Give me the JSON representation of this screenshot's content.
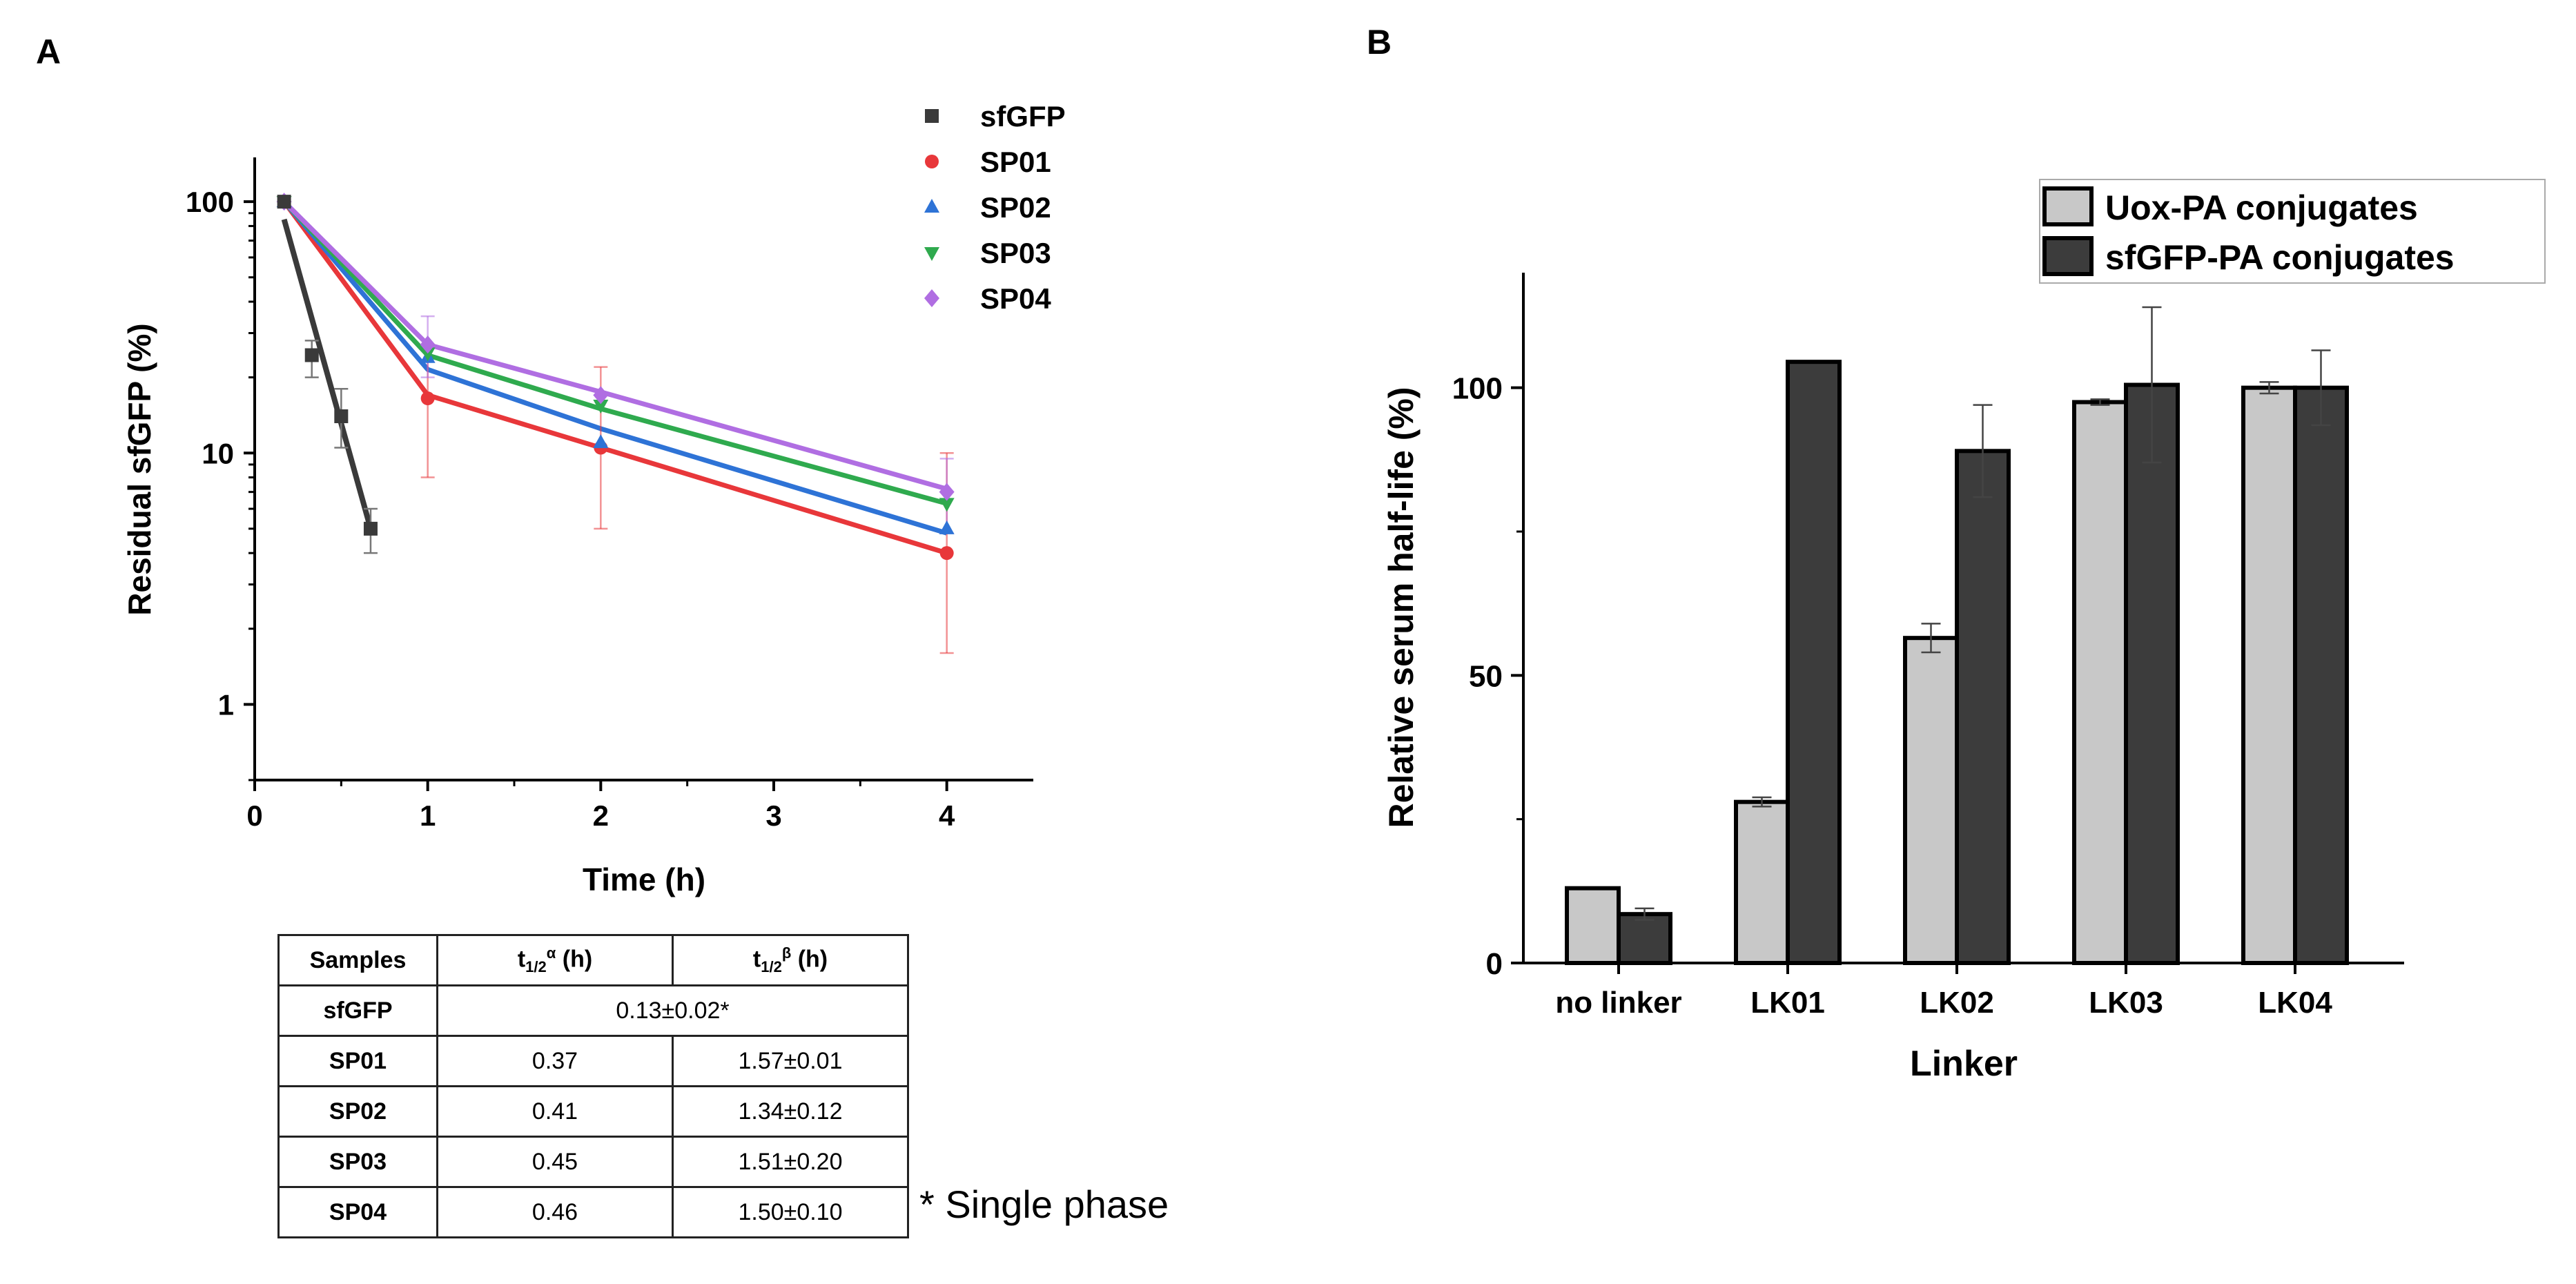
{
  "panel_labels": {
    "a": "A",
    "b": "B"
  },
  "table": {
    "headers": {
      "samples": "Samples",
      "alpha_main": "t",
      "alpha_sub": "1/2",
      "alpha_sup": "α",
      "alpha_unit": " (h)",
      "beta_main": "t",
      "beta_sub": "1/2",
      "beta_sup": "β",
      "beta_unit": " (h)"
    },
    "rows": [
      {
        "sample": "sfGFP",
        "merged": "0.13±0.02*"
      },
      {
        "sample": "SP01",
        "alpha": "0.37",
        "beta": "1.57±0.01"
      },
      {
        "sample": "SP02",
        "alpha": "0.41",
        "beta": "1.34±0.12"
      },
      {
        "sample": "SP03",
        "alpha": "0.45",
        "beta": "1.51±0.20"
      },
      {
        "sample": "SP04",
        "alpha": "0.46",
        "beta": "1.50±0.10"
      }
    ],
    "footnote": "* Single phase"
  },
  "chart_data": [
    {
      "type": "scatter",
      "panel": "A",
      "title": "",
      "xlabel": "Time (h)",
      "ylabel": "Residual sfGFP (%)",
      "xlim": [
        0,
        4.5
      ],
      "ylim": [
        0.5,
        150
      ],
      "yscale": "log",
      "xticks": [
        0,
        1,
        2,
        3,
        4
      ],
      "xtick_labels": [
        "0",
        "1",
        "2",
        "3",
        "4"
      ],
      "yticks": [
        1,
        10,
        100
      ],
      "ytick_labels": [
        "1",
        "10",
        "100"
      ],
      "legend_position": "top-right",
      "series": [
        {
          "name": "sfGFP",
          "color": "#3a3a3a",
          "marker": "square",
          "x": [
            0.17,
            0.33,
            0.5,
            0.67
          ],
          "y": [
            100,
            24.5,
            14,
            5
          ],
          "err_low": [
            0,
            20,
            10.5,
            4
          ],
          "err_high": [
            0,
            28,
            18,
            6
          ],
          "fit_x": [
            0.17,
            0.67
          ],
          "fit_y": [
            85,
            5
          ]
        },
        {
          "name": "SP01",
          "color": "#e8373a",
          "marker": "circle",
          "x": [
            0.17,
            1,
            2,
            4
          ],
          "y": [
            100,
            16.5,
            10.5,
            4
          ],
          "err_low": [
            0,
            8,
            5,
            1.6
          ],
          "err_high": [
            0,
            27,
            22,
            10
          ],
          "fit_x": [
            0.17,
            1,
            2,
            4
          ],
          "fit_y": [
            100,
            17,
            10.5,
            4
          ]
        },
        {
          "name": "SP02",
          "color": "#2e73d6",
          "marker": "triangle-up",
          "x": [
            0.17,
            1,
            2,
            4
          ],
          "y": [
            100,
            24,
            11,
            5
          ],
          "err_low": [
            0,
            0,
            0,
            0
          ],
          "err_high": [
            0,
            0,
            0,
            0
          ],
          "fit_x": [
            0.17,
            1,
            2,
            4
          ],
          "fit_y": [
            100,
            21.5,
            12.5,
            4.8
          ]
        },
        {
          "name": "SP03",
          "color": "#2faa4e",
          "marker": "triangle-down",
          "x": [
            0.17,
            1,
            2,
            4
          ],
          "y": [
            100,
            25,
            15.5,
            6.3
          ],
          "err_low": [
            0,
            0,
            0,
            0
          ],
          "err_high": [
            0,
            0,
            0,
            0
          ],
          "fit_x": [
            0.17,
            1,
            2,
            4
          ],
          "fit_y": [
            100,
            24.5,
            15,
            6.3
          ]
        },
        {
          "name": "SP04",
          "color": "#b06ee2",
          "marker": "diamond",
          "x": [
            0.17,
            1,
            2,
            4
          ],
          "y": [
            100,
            27,
            17,
            7
          ],
          "err_low": [
            0,
            20,
            0,
            4.8
          ],
          "err_high": [
            0,
            35,
            0,
            9.5
          ],
          "fit_x": [
            0.17,
            1,
            2,
            4
          ],
          "fit_y": [
            100,
            27,
            17.5,
            7.2
          ]
        }
      ]
    },
    {
      "type": "bar",
      "panel": "B",
      "title": "",
      "xlabel": "Linker",
      "ylabel": "Relative serum half-life (%)",
      "ylim": [
        0,
        120
      ],
      "yticks": [
        0,
        50,
        100
      ],
      "ytick_labels": [
        "0",
        "50",
        "100"
      ],
      "categories": [
        "no linker",
        "LK01",
        "LK02",
        "LK03",
        "LK04"
      ],
      "legend_position": "top-right",
      "series": [
        {
          "name": "Uox-PA conjugates",
          "color": "#c8c8c8",
          "values": [
            13,
            28,
            56.5,
            97.5,
            100
          ],
          "err": [
            0,
            0.8,
            2.5,
            0.5,
            1
          ]
        },
        {
          "name": "sfGFP-PA conjugates",
          "color": "#3c3c3c",
          "values": [
            8.5,
            104.5,
            89,
            100.5,
            100
          ],
          "err": [
            1,
            0,
            8,
            13.5,
            6.5
          ]
        }
      ]
    }
  ]
}
